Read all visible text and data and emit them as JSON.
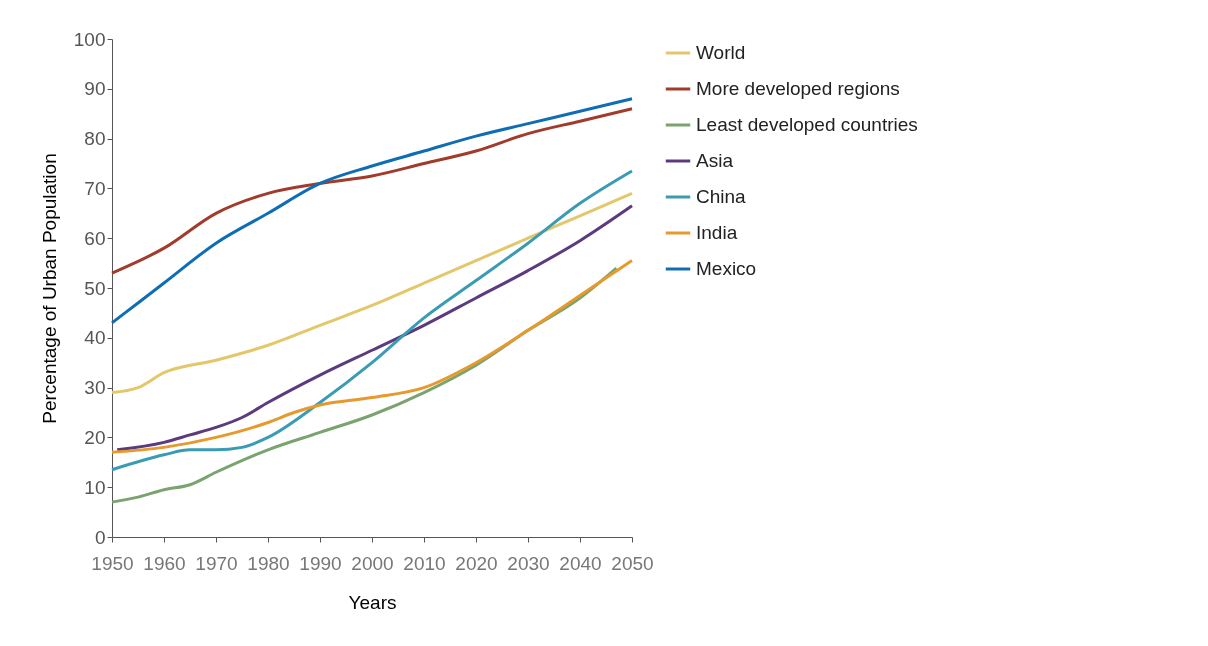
{
  "chart_data": {
    "type": "line",
    "xlabel": "Years",
    "ylabel": "Percentage of Urban Population",
    "xlim": [
      1950,
      2050
    ],
    "xticks": [
      1950,
      1960,
      1970,
      1980,
      1990,
      2000,
      2010,
      2020,
      2030,
      2040,
      2050
    ],
    "ylim": [
      0,
      100
    ],
    "yticks": [
      0,
      10,
      20,
      30,
      40,
      50,
      60,
      70,
      80,
      90,
      100
    ],
    "grid": false,
    "legend": "right",
    "marker": "none",
    "line_style": "solid",
    "series": [
      {
        "name": "World",
        "color": "#e3c76a",
        "x": [
          1950,
          1955,
          1960,
          1970,
          1980,
          1990,
          2000,
          2010,
          2020,
          2030,
          2040,
          2050
        ],
        "values": [
          29,
          30,
          33,
          35.5,
          38.5,
          42.5,
          46.5,
          51,
          55.5,
          60,
          64.5,
          69
        ]
      },
      {
        "name": "More developed regions",
        "color": "#a13b2b",
        "x": [
          1950,
          1960,
          1970,
          1980,
          1990,
          2000,
          2010,
          2020,
          2030,
          2040,
          2050
        ],
        "values": [
          53,
          58,
          65,
          69,
          71,
          72.5,
          75,
          77.5,
          81,
          83.5,
          86
        ]
      },
      {
        "name": "Least developed countries",
        "color": "#7aa36f",
        "x": [
          1950,
          1955,
          1960,
          1965,
          1970,
          1980,
          1990,
          2000,
          2010,
          2020,
          2030,
          2040,
          2047
        ],
        "values": [
          7,
          8,
          9.5,
          10.5,
          13,
          17.5,
          21,
          24.5,
          29,
          34.5,
          41.5,
          48,
          54
        ]
      },
      {
        "name": "Asia",
        "color": "#5b3a7e",
        "x": [
          1951,
          1960,
          1965,
          1970,
          1975,
          1980,
          1990,
          2000,
          2010,
          2020,
          2030,
          2040,
          2050
        ],
        "values": [
          17.5,
          19,
          20.5,
          22,
          24,
          27,
          32.5,
          37.5,
          42.5,
          48,
          53.5,
          59.5,
          66.5
        ]
      },
      {
        "name": "China",
        "color": "#3a9bb5",
        "x": [
          1950,
          1960,
          1965,
          1970,
          1975,
          1980,
          1990,
          2000,
          2010,
          2020,
          2030,
          2040,
          2050
        ],
        "values": [
          13.5,
          16.5,
          17.5,
          17.5,
          18,
          20,
          27,
          35,
          44,
          51.5,
          59,
          67,
          73.5
        ]
      },
      {
        "name": "India",
        "color": "#e69a2e",
        "x": [
          1950,
          1960,
          1970,
          1980,
          1985,
          1990,
          2000,
          2010,
          2020,
          2030,
          2040,
          2050
        ],
        "values": [
          17,
          18,
          20,
          23,
          25,
          26.5,
          28,
          30,
          35,
          41.5,
          48.5,
          55.5
        ]
      },
      {
        "name": "Mexico",
        "color": "#0f6db5",
        "x": [
          1950,
          1955,
          1960,
          1970,
          1980,
          1990,
          2000,
          2010,
          2020,
          2030,
          2040,
          2050
        ],
        "values": [
          43,
          47,
          51,
          59,
          65,
          71,
          74.5,
          77.5,
          80.5,
          83,
          85.5,
          88
        ]
      }
    ]
  }
}
